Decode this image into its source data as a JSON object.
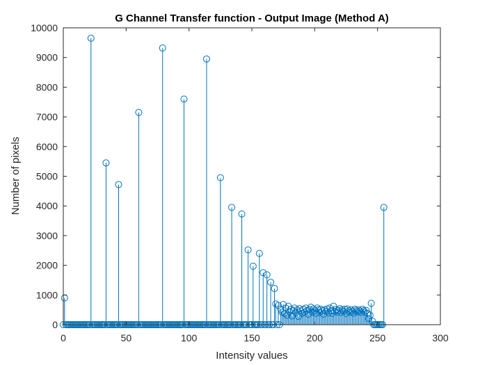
{
  "chart_data": {
    "type": "stem",
    "title": "G Channel Transfer function - Output Image (Method A)",
    "xlabel": "Intensity values",
    "ylabel": "Number of pixels",
    "xlim": [
      0,
      300
    ],
    "ylim": [
      0,
      10000
    ],
    "xticks": [
      0,
      50,
      100,
      150,
      200,
      250,
      300
    ],
    "yticks": [
      0,
      1000,
      2000,
      3000,
      4000,
      5000,
      6000,
      7000,
      8000,
      9000,
      10000
    ],
    "grid": false,
    "marker": "open circle",
    "series_color": "#0072BD",
    "major_points": [
      {
        "x": 1,
        "y": 900
      },
      {
        "x": 22,
        "y": 9650
      },
      {
        "x": 34,
        "y": 5450
      },
      {
        "x": 44,
        "y": 4720
      },
      {
        "x": 60,
        "y": 7150
      },
      {
        "x": 79,
        "y": 9320
      },
      {
        "x": 96,
        "y": 7600
      },
      {
        "x": 114,
        "y": 8950
      },
      {
        "x": 125,
        "y": 4950
      },
      {
        "x": 134,
        "y": 3950
      },
      {
        "x": 142,
        "y": 3730
      },
      {
        "x": 147,
        "y": 2520
      },
      {
        "x": 151,
        "y": 1970
      },
      {
        "x": 156,
        "y": 2400
      },
      {
        "x": 159,
        "y": 1750
      },
      {
        "x": 162,
        "y": 1680
      },
      {
        "x": 165,
        "y": 1430
      },
      {
        "x": 168,
        "y": 1220
      },
      {
        "x": 169,
        "y": 700
      },
      {
        "x": 171,
        "y": 650
      },
      {
        "x": 173,
        "y": 520
      },
      {
        "x": 174,
        "y": 420
      },
      {
        "x": 175,
        "y": 680
      },
      {
        "x": 176,
        "y": 380
      },
      {
        "x": 177,
        "y": 560
      },
      {
        "x": 178,
        "y": 320
      },
      {
        "x": 179,
        "y": 620
      },
      {
        "x": 180,
        "y": 430
      },
      {
        "x": 181,
        "y": 520
      },
      {
        "x": 182,
        "y": 300
      },
      {
        "x": 183,
        "y": 470
      },
      {
        "x": 184,
        "y": 560
      },
      {
        "x": 185,
        "y": 400
      },
      {
        "x": 186,
        "y": 500
      },
      {
        "x": 187,
        "y": 280
      },
      {
        "x": 188,
        "y": 540
      },
      {
        "x": 189,
        "y": 460
      },
      {
        "x": 190,
        "y": 380
      },
      {
        "x": 191,
        "y": 520
      },
      {
        "x": 192,
        "y": 420
      },
      {
        "x": 193,
        "y": 560
      },
      {
        "x": 194,
        "y": 480
      },
      {
        "x": 195,
        "y": 350
      },
      {
        "x": 196,
        "y": 510
      },
      {
        "x": 197,
        "y": 590
      },
      {
        "x": 198,
        "y": 420
      },
      {
        "x": 199,
        "y": 530
      },
      {
        "x": 200,
        "y": 470
      },
      {
        "x": 201,
        "y": 380
      },
      {
        "x": 202,
        "y": 560
      },
      {
        "x": 203,
        "y": 500
      },
      {
        "x": 204,
        "y": 410
      },
      {
        "x": 205,
        "y": 520
      },
      {
        "x": 206,
        "y": 470
      },
      {
        "x": 207,
        "y": 350
      },
      {
        "x": 208,
        "y": 500
      },
      {
        "x": 209,
        "y": 450
      },
      {
        "x": 210,
        "y": 530
      },
      {
        "x": 211,
        "y": 400
      },
      {
        "x": 212,
        "y": 560
      },
      {
        "x": 213,
        "y": 470
      },
      {
        "x": 214,
        "y": 380
      },
      {
        "x": 215,
        "y": 620
      },
      {
        "x": 216,
        "y": 450
      },
      {
        "x": 217,
        "y": 510
      },
      {
        "x": 218,
        "y": 420
      },
      {
        "x": 219,
        "y": 480
      },
      {
        "x": 220,
        "y": 540
      },
      {
        "x": 221,
        "y": 410
      },
      {
        "x": 222,
        "y": 500
      },
      {
        "x": 223,
        "y": 450
      },
      {
        "x": 224,
        "y": 520
      },
      {
        "x": 225,
        "y": 380
      },
      {
        "x": 226,
        "y": 530
      },
      {
        "x": 227,
        "y": 470
      },
      {
        "x": 228,
        "y": 420
      },
      {
        "x": 229,
        "y": 500
      },
      {
        "x": 230,
        "y": 450
      },
      {
        "x": 231,
        "y": 390
      },
      {
        "x": 232,
        "y": 520
      },
      {
        "x": 233,
        "y": 480
      },
      {
        "x": 234,
        "y": 430
      },
      {
        "x": 235,
        "y": 500
      },
      {
        "x": 236,
        "y": 460
      },
      {
        "x": 237,
        "y": 410
      },
      {
        "x": 238,
        "y": 520
      },
      {
        "x": 239,
        "y": 470
      },
      {
        "x": 240,
        "y": 420
      },
      {
        "x": 241,
        "y": 480
      },
      {
        "x": 242,
        "y": 380
      },
      {
        "x": 243,
        "y": 200
      },
      {
        "x": 244,
        "y": 320
      },
      {
        "x": 245,
        "y": 720
      },
      {
        "x": 246,
        "y": 120
      },
      {
        "x": 255,
        "y": 3950
      }
    ]
  }
}
